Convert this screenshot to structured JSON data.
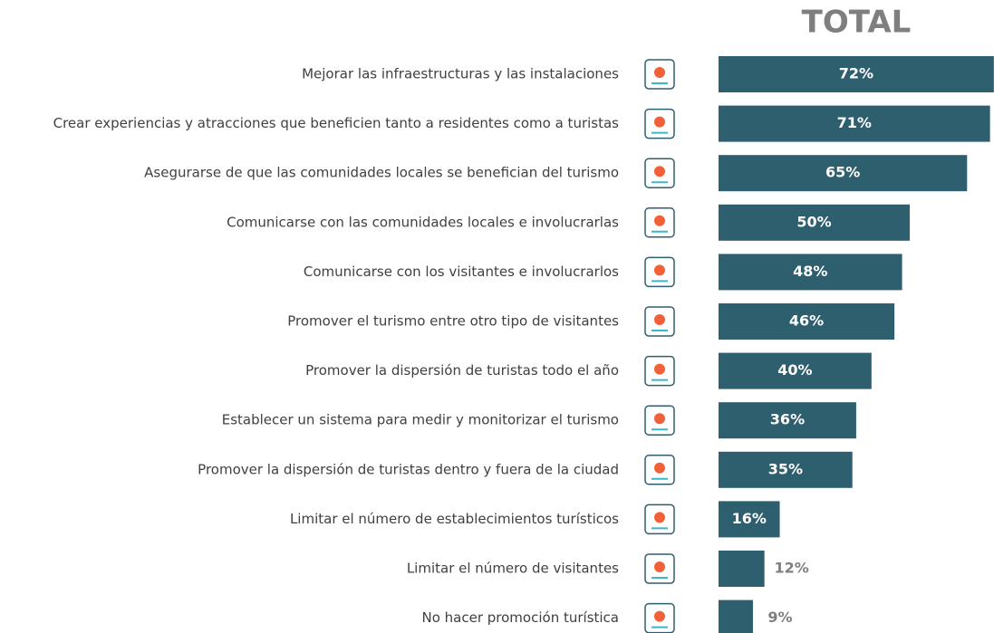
{
  "chart_data": {
    "type": "bar",
    "orientation": "horizontal",
    "title": "TOTAL",
    "categories": [
      "Mejorar las infraestructuras y las instalaciones",
      "Crear experiencias y atracciones que beneficien tanto a residentes como a turistas",
      "Asegurarse de que las comunidades locales se benefician del turismo",
      "Comunicarse con las comunidades locales e involucrarlas",
      "Comunicarse con los visitantes e involucrarlos",
      "Promover el turismo entre otro tipo de visitantes",
      "Promover la dispersión de turistas todo el año",
      "Establecer un sistema para medir y monitorizar el turismo",
      "Promover la dispersión de turistas dentro y fuera de la ciudad",
      "Limitar el número de establecimientos turísticos",
      "Limitar el número de visitantes",
      "No hacer promoción turística"
    ],
    "values": [
      72,
      71,
      65,
      50,
      48,
      46,
      40,
      36,
      35,
      16,
      12,
      9
    ],
    "value_labels": [
      "72%",
      "71%",
      "65%",
      "50%",
      "48%",
      "46%",
      "40%",
      "36%",
      "35%",
      "16%",
      "12%",
      "9%"
    ],
    "color": "#2e5f6e"
  }
}
